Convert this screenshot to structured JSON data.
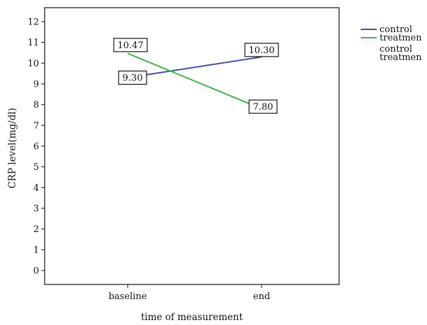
{
  "chart_data": {
    "type": "line",
    "xlabel": "time of measurement",
    "ylabel": "CRP level(mg/dl)",
    "categories": [
      "baseline",
      "end"
    ],
    "ylim": [
      0,
      12
    ],
    "yticks": [
      0,
      1,
      2,
      3,
      4,
      5,
      6,
      7,
      8,
      9,
      10,
      11,
      12
    ],
    "grid": false,
    "legend_position": "top-right",
    "series": [
      {
        "name": "control",
        "color": "#3a4fa3",
        "values": [
          9.3,
          10.3
        ],
        "labels": [
          "9.30",
          "10.30"
        ]
      },
      {
        "name": "treatmen",
        "color": "#3db54a",
        "values": [
          10.47,
          7.8
        ],
        "labels": [
          "10.47",
          "7.80"
        ]
      }
    ],
    "legend_extra": [
      "control",
      "treatmen"
    ]
  }
}
